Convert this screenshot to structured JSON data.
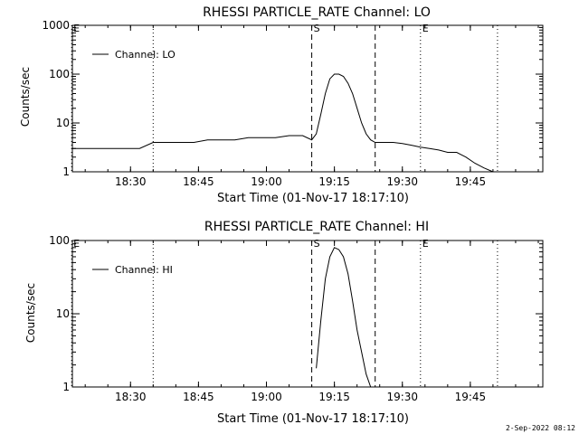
{
  "footer_timestamp": "2-Sep-2022 08:12",
  "chart_data": [
    {
      "type": "line",
      "title": "RHESSI PARTICLE_RATE Channel: LO",
      "xlabel": "Start Time (01-Nov-17 18:17:10)",
      "ylabel": "Counts/sec",
      "yscale": "log",
      "ylim": [
        1,
        1000
      ],
      "xlim": [
        "18:17:10",
        "20:01:00"
      ],
      "x_ticks": [
        "18:30",
        "18:45",
        "19:00",
        "19:15",
        "19:30",
        "19:45"
      ],
      "y_ticks": [
        "1",
        "10",
        "100",
        "1000"
      ],
      "legend": {
        "placement": "top-left",
        "entries": [
          "Channel: LO"
        ]
      },
      "markers": [
        {
          "label": "E",
          "time": "18:17",
          "style": "dotted"
        },
        {
          "label": "",
          "time": "18:35",
          "style": "dotted"
        },
        {
          "label": "S",
          "time": "19:10",
          "style": "dashed"
        },
        {
          "label": "",
          "time": "19:24",
          "style": "dashed"
        },
        {
          "label": "E",
          "time": "19:34",
          "style": "dotted"
        },
        {
          "label": "",
          "time": "19:51",
          "style": "dotted"
        }
      ],
      "series": [
        {
          "name": "Channel: LO",
          "x": [
            "18:17",
            "18:20",
            "18:23",
            "18:26",
            "18:29",
            "18:32",
            "18:35",
            "18:38",
            "18:41",
            "18:44",
            "18:47",
            "18:50",
            "18:53",
            "18:56",
            "18:59",
            "19:02",
            "19:05",
            "19:08",
            "19:10",
            "19:11",
            "19:12",
            "19:13",
            "19:14",
            "19:15",
            "19:16",
            "19:17",
            "19:18",
            "19:19",
            "19:20",
            "19:21",
            "19:22",
            "19:23",
            "19:24",
            "19:26",
            "19:28",
            "19:30",
            "19:32",
            "19:34",
            "19:36",
            "19:38",
            "19:40",
            "19:42",
            "19:44",
            "19:46",
            "19:48",
            "19:50"
          ],
          "values": [
            3,
            3,
            3,
            3,
            3,
            3,
            4,
            4,
            4,
            4,
            4.5,
            4.5,
            4.5,
            5,
            5,
            5,
            5.5,
            5.5,
            4.5,
            6,
            15,
            40,
            80,
            100,
            100,
            90,
            65,
            40,
            20,
            10,
            6,
            4.5,
            4,
            4,
            4,
            3.8,
            3.5,
            3.2,
            3,
            2.8,
            2.5,
            2.5,
            2,
            1.5,
            1.2,
            1
          ]
        }
      ]
    },
    {
      "type": "line",
      "title": "RHESSI PARTICLE_RATE Channel: HI",
      "xlabel": "Start Time (01-Nov-17 18:17:10)",
      "ylabel": "Counts/sec",
      "yscale": "log",
      "ylim": [
        1,
        100
      ],
      "xlim": [
        "18:17:10",
        "20:01:00"
      ],
      "x_ticks": [
        "18:30",
        "18:45",
        "19:00",
        "19:15",
        "19:30",
        "19:45"
      ],
      "y_ticks": [
        "1",
        "10",
        "100"
      ],
      "legend": {
        "placement": "top-left",
        "entries": [
          "Channel: HI"
        ]
      },
      "markers": [
        {
          "label": "E",
          "time": "18:17",
          "style": "dotted"
        },
        {
          "label": "",
          "time": "18:35",
          "style": "dotted"
        },
        {
          "label": "S",
          "time": "19:10",
          "style": "dashed"
        },
        {
          "label": "",
          "time": "19:24",
          "style": "dashed"
        },
        {
          "label": "E",
          "time": "19:34",
          "style": "dotted"
        },
        {
          "label": "",
          "time": "19:51",
          "style": "dotted"
        }
      ],
      "series": [
        {
          "name": "Channel: HI",
          "x": [
            "19:11",
            "19:12",
            "19:13",
            "19:14",
            "19:15",
            "19:16",
            "19:17",
            "19:18",
            "19:19",
            "19:20",
            "19:21",
            "19:22",
            "19:23"
          ],
          "values": [
            1.8,
            8,
            30,
            60,
            80,
            75,
            60,
            35,
            15,
            6,
            3,
            1.5,
            1
          ]
        }
      ]
    }
  ]
}
